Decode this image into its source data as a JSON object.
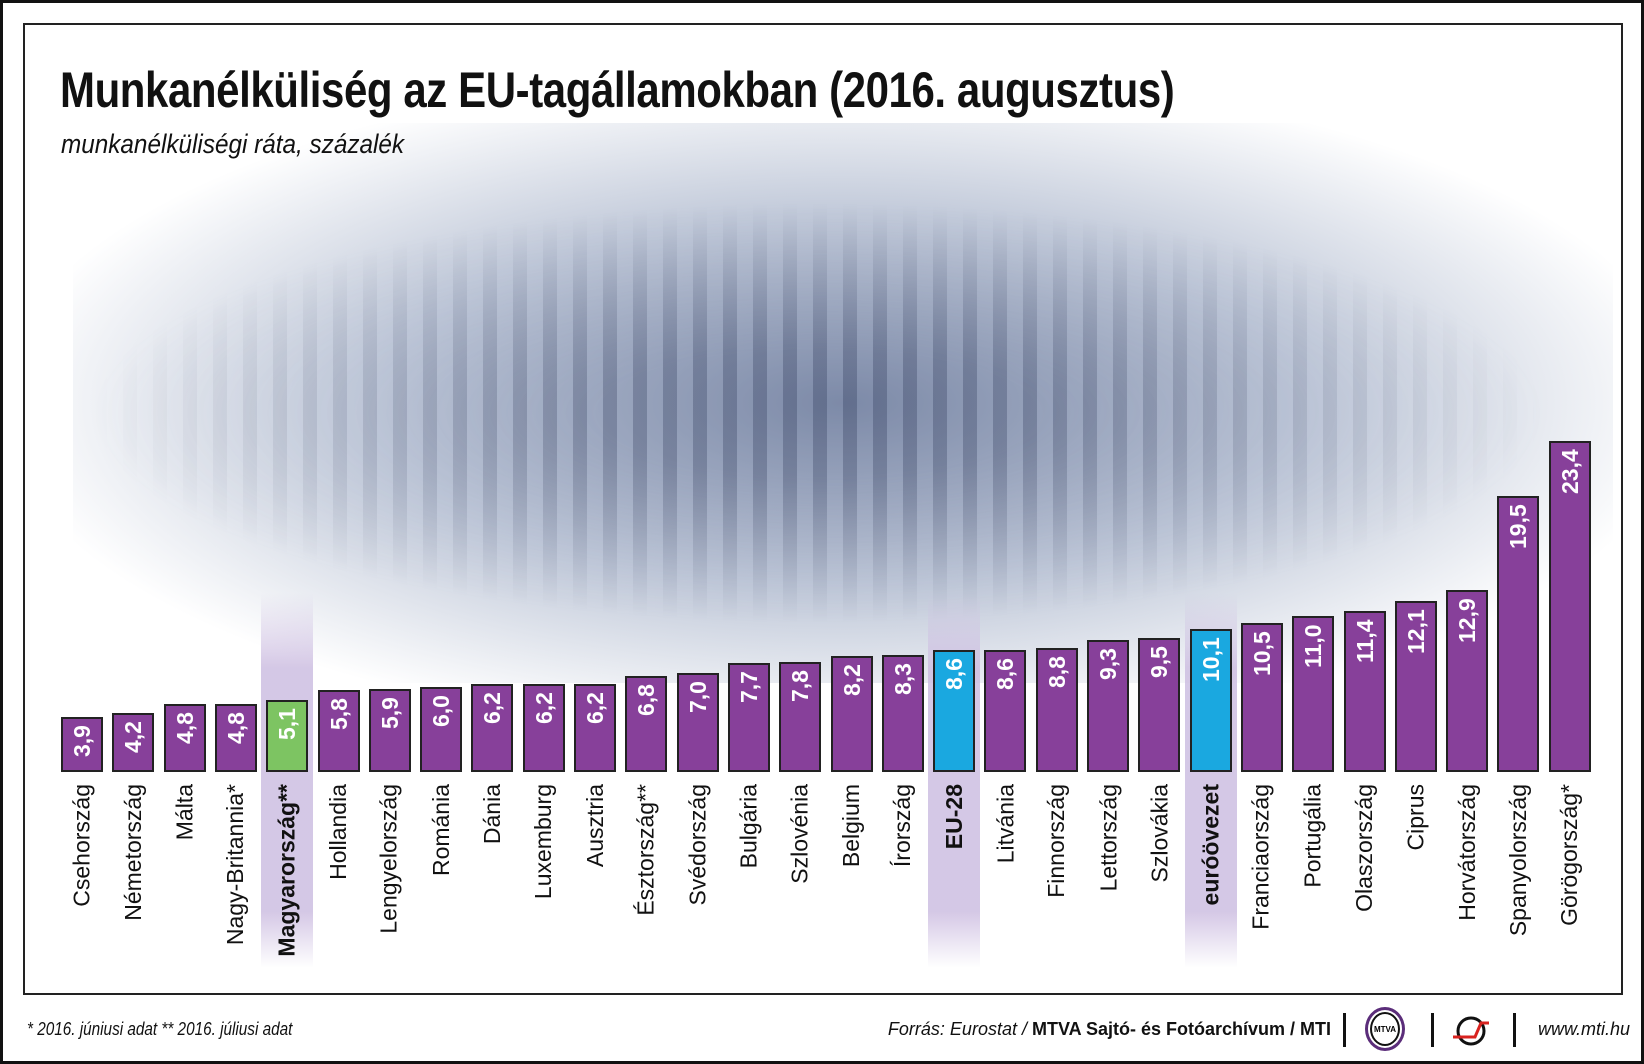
{
  "chart_data": {
    "type": "bar",
    "title": "Munkanélküliség az EU-tagállamokban (2016. augusztus)",
    "subtitle": "munkanélküliségi ráta, százalék",
    "categories": [
      "Csehország",
      "Németország",
      "Málta",
      "Nagy-Britannia*",
      "Magyarország**",
      "Hollandia",
      "Lengyelország",
      "Románia",
      "Dánia",
      "Luxemburg",
      "Ausztria",
      "Észtország**",
      "Svédország",
      "Bulgária",
      "Szlovénia",
      "Belgium",
      "Írország",
      "EU-28",
      "Litvánia",
      "Finnország",
      "Lettország",
      "Szlovákia",
      "euróövezet",
      "Franciaország",
      "Portugália",
      "Olaszország",
      "Ciprus",
      "Horvátország",
      "Spanyolország",
      "Görögország*"
    ],
    "values": [
      3.9,
      4.2,
      4.8,
      4.8,
      5.1,
      5.8,
      5.9,
      6.0,
      6.2,
      6.2,
      6.2,
      6.8,
      7.0,
      7.7,
      7.8,
      8.2,
      8.3,
      8.6,
      8.6,
      8.8,
      9.3,
      9.5,
      10.1,
      10.5,
      11.0,
      11.4,
      12.1,
      12.9,
      19.5,
      23.4
    ],
    "value_labels": [
      "3,9",
      "4,2",
      "4,8",
      "4,8",
      "5,1",
      "5,8",
      "5,9",
      "6,0",
      "6,2",
      "6,2",
      "6,2",
      "6,8",
      "7,0",
      "7,7",
      "7,8",
      "8,2",
      "8,3",
      "8,6",
      "8,6",
      "8,8",
      "9,3",
      "9,5",
      "10,1",
      "10,5",
      "11,0",
      "11,4",
      "12,1",
      "12,9",
      "19,5",
      "23,4"
    ],
    "highlighted": {
      "Magyarország**": "#7dc462",
      "EU-28": "#1aa8e0",
      "euróövezet": "#1aa8e0"
    },
    "bold_labels": [
      "Magyarország**",
      "EU-28",
      "euróövezet"
    ],
    "bar_color": "#87409a",
    "ylim": [
      0,
      23.4
    ],
    "grid": false,
    "legend": "none"
  },
  "footer": {
    "notes": "* 2016. júniusi adat   ** 2016. júliusi adat",
    "source_prefix": "Forrás: Eurostat / ",
    "source_bold": "MTVA Sajtó- és Fotóarchívum / MTI",
    "mtva_logo": "MTVA",
    "url": "www.mti.hu"
  }
}
